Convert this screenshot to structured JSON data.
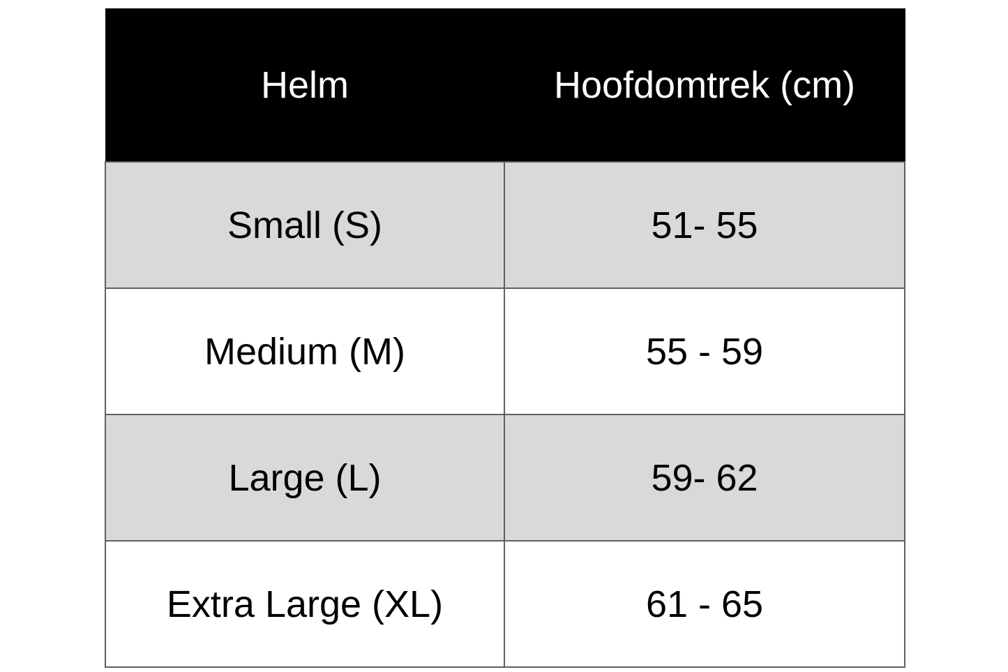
{
  "table": {
    "headers": [
      "Helm",
      "Hoofdomtrek (cm)"
    ],
    "rows": [
      [
        "Small (S)",
        "51- 55"
      ],
      [
        "Medium (M)",
        "55 - 59"
      ],
      [
        "Large (L)",
        "59- 62"
      ],
      [
        "Extra Large (XL)",
        "61 - 65"
      ]
    ]
  },
  "colors": {
    "header_bg": "#000000",
    "stripe_bg": "#d9d9d9",
    "border": "#5f5f5f"
  }
}
